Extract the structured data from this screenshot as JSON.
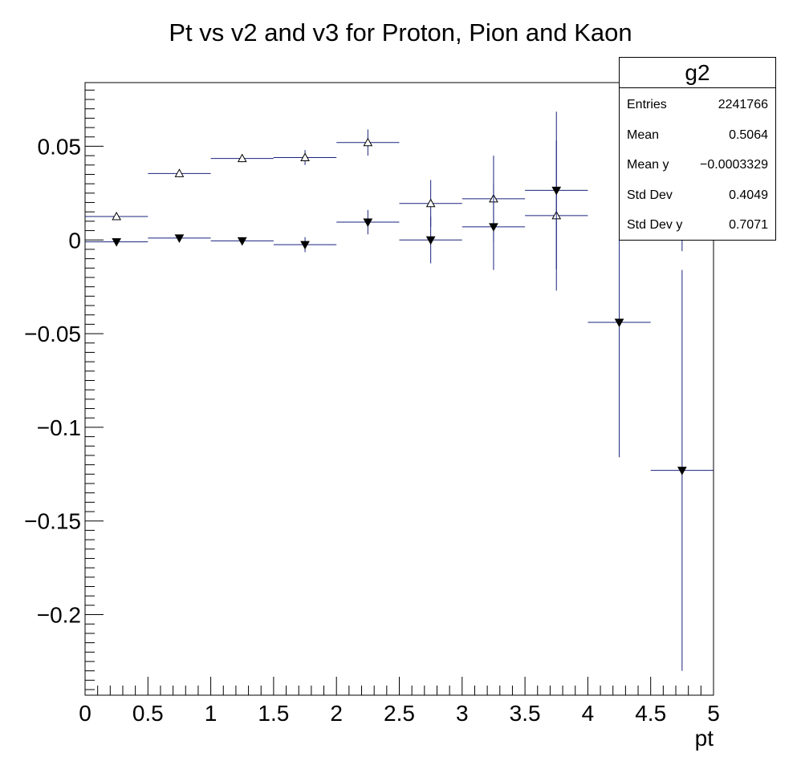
{
  "chart_data": {
    "type": "scatter",
    "title": "Pt vs v2 and v3 for Proton, Pion and Kaon",
    "xlabel": "pt",
    "ylabel": "",
    "xlim": [
      0,
      5
    ],
    "ylim": [
      -0.243,
      0.084
    ],
    "x_ticks": [
      "0",
      "0.5",
      "1",
      "1.5",
      "2",
      "2.5",
      "3",
      "3.5",
      "4",
      "4.5",
      "5"
    ],
    "y_ticks": [
      {
        "value": 0.05,
        "label": "0.05"
      },
      {
        "value": 0,
        "label": "0"
      },
      {
        "value": -0.05,
        "label": "−0.05"
      },
      {
        "value": -0.1,
        "label": "−0.1"
      },
      {
        "value": -0.15,
        "label": "−0.15"
      },
      {
        "value": -0.2,
        "label": "−0.2"
      }
    ],
    "grid": false,
    "series": [
      {
        "marker": "open-triangle-up",
        "color": "#000000",
        "bar_color": "#1a237e",
        "points": [
          {
            "x": 0.25,
            "y": 0.0125,
            "xerr": 0.25,
            "yerr": 0.001
          },
          {
            "x": 0.75,
            "y": 0.0355,
            "xerr": 0.25,
            "yerr": 0.0015
          },
          {
            "x": 1.25,
            "y": 0.0435,
            "xerr": 0.25,
            "yerr": 0.002
          },
          {
            "x": 1.75,
            "y": 0.044,
            "xerr": 0.25,
            "yerr": 0.004
          },
          {
            "x": 2.25,
            "y": 0.052,
            "xerr": 0.25,
            "yerr": 0.007
          },
          {
            "x": 2.75,
            "y": 0.0195,
            "xerr": 0.25,
            "yerr": 0.0125
          },
          {
            "x": 3.25,
            "y": 0.022,
            "xerr": 0.25,
            "yerr": 0.023
          },
          {
            "x": 3.75,
            "y": 0.013,
            "xerr": 0.25,
            "yerr": 0.04
          },
          {
            "x": 4.75,
            "y": 0.039,
            "xerr": 0.25,
            "yerr": 0.045
          }
        ]
      },
      {
        "marker": "filled-triangle-down",
        "color": "#000000",
        "bar_color": "#1a237e",
        "points": [
          {
            "x": 0.25,
            "y": -0.001,
            "xerr": 0.25,
            "yerr": 0.001
          },
          {
            "x": 0.75,
            "y": 0.001,
            "xerr": 0.25,
            "yerr": 0.0015
          },
          {
            "x": 1.25,
            "y": -0.0005,
            "xerr": 0.25,
            "yerr": 0.002
          },
          {
            "x": 1.75,
            "y": -0.0025,
            "xerr": 0.25,
            "yerr": 0.004
          },
          {
            "x": 2.25,
            "y": 0.0095,
            "xerr": 0.25,
            "yerr": 0.0065
          },
          {
            "x": 2.75,
            "y": 0.0,
            "xerr": 0.25,
            "yerr": 0.0125
          },
          {
            "x": 3.25,
            "y": 0.007,
            "xerr": 0.25,
            "yerr": 0.023
          },
          {
            "x": 3.75,
            "y": 0.0265,
            "xerr": 0.25,
            "yerr": 0.042
          },
          {
            "x": 4.25,
            "y": -0.044,
            "xerr": 0.25,
            "yerr": 0.072
          },
          {
            "x": 4.75,
            "y": -0.123,
            "xerr": 0.25,
            "yerr": 0.107
          }
        ]
      }
    ],
    "stats_box": {
      "title": "g2",
      "rows": [
        {
          "label": "Entries",
          "value": "2241766"
        },
        {
          "label": "Mean",
          "value": "0.5064"
        },
        {
          "label": "Mean y",
          "value": "−0.0003329"
        },
        {
          "label": "Std Dev",
          "value": "0.4049"
        },
        {
          "label": "Std Dev y",
          "value": "0.7071"
        }
      ]
    }
  }
}
